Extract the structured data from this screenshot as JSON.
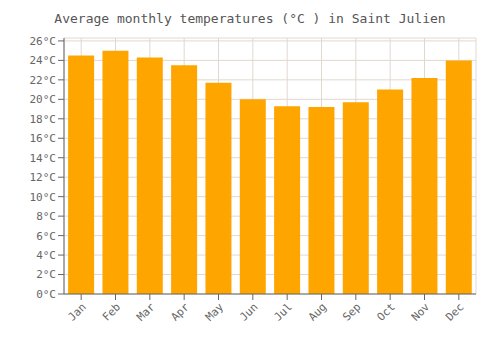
{
  "chart_data": {
    "type": "bar",
    "title": "Average monthly temperatures (°C ) in Saint Julien",
    "categories": [
      "Jan",
      "Feb",
      "Mar",
      "Apr",
      "May",
      "Jun",
      "Jul",
      "Aug",
      "Sep",
      "Oct",
      "Nov",
      "Dec"
    ],
    "values": [
      24.5,
      25.0,
      24.3,
      23.5,
      21.7,
      20.0,
      19.3,
      19.2,
      19.7,
      21.0,
      22.2,
      24.0
    ],
    "color": "#FFA500",
    "ylim": [
      0,
      26.3
    ],
    "yticks": [
      {
        "value": 0,
        "label": "0°C"
      },
      {
        "value": 2,
        "label": "2°C"
      },
      {
        "value": 4,
        "label": "4°C"
      },
      {
        "value": 6,
        "label": "6°C"
      },
      {
        "value": 8,
        "label": "8°C"
      },
      {
        "value": 10,
        "label": "10°C"
      },
      {
        "value": 12,
        "label": "12°C"
      },
      {
        "value": 14,
        "label": "14°C"
      },
      {
        "value": 16,
        "label": "16°C"
      },
      {
        "value": 18,
        "label": "18°C"
      },
      {
        "value": 20,
        "label": "20°C"
      },
      {
        "value": 22,
        "label": "22°C"
      },
      {
        "value": 24,
        "label": "24°C"
      },
      {
        "value": 26,
        "label": "26°C"
      }
    ],
    "grid": true
  }
}
